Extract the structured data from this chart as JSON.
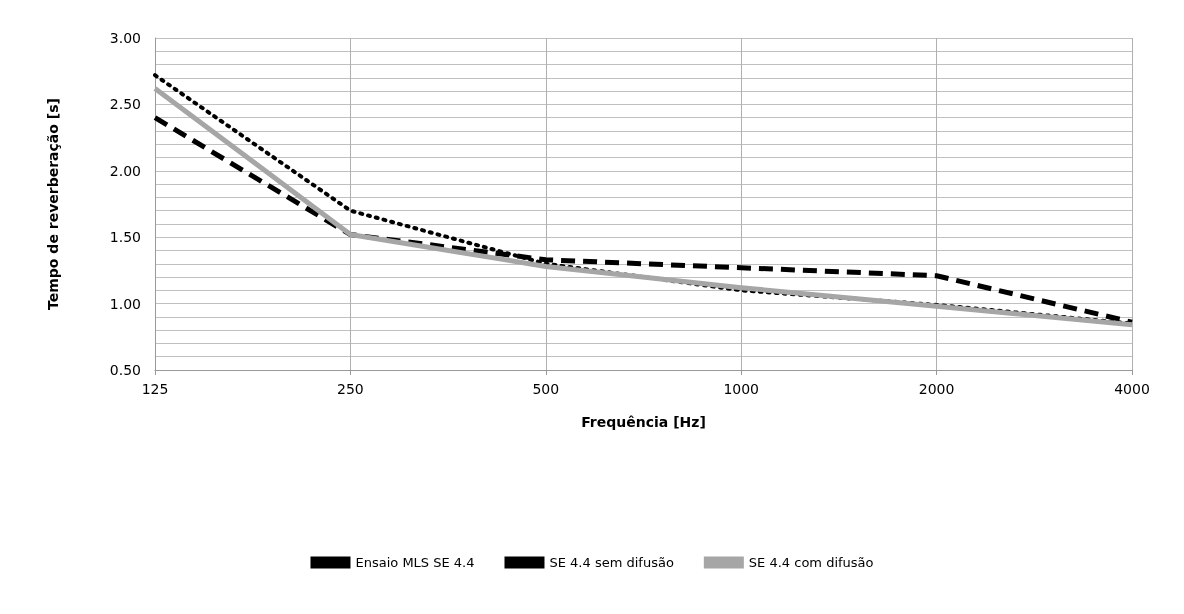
{
  "chart_data": {
    "type": "line",
    "xlabel": "Frequência [Hz]",
    "ylabel": "Tempo de reverberação [s]",
    "categories": [
      "125",
      "250",
      "500",
      "1000",
      "2000",
      "4000"
    ],
    "series": [
      {
        "name": "Ensaio MLS SE 4.4",
        "color": "#000000",
        "line_style": "dashed",
        "values": [
          2.4,
          1.52,
          1.33,
          1.27,
          1.21,
          0.86
        ]
      },
      {
        "name": "SE 4.4 sem difusão",
        "color": "#000000",
        "line_style": "dotted",
        "values": [
          2.72,
          1.7,
          1.3,
          1.1,
          0.99,
          0.85
        ]
      },
      {
        "name": "SE 4.4 com difusão",
        "color": "#a6a6a6",
        "line_style": "solid",
        "values": [
          2.62,
          1.52,
          1.28,
          1.12,
          0.98,
          0.84
        ]
      }
    ],
    "ylim": [
      0.5,
      3
    ],
    "yticks": [
      {
        "value": 0.5,
        "label": "0.50"
      },
      {
        "value": 0.6,
        "label": null
      },
      {
        "value": 0.7,
        "label": null
      },
      {
        "value": 0.8,
        "label": null
      },
      {
        "value": 0.9,
        "label": null
      },
      {
        "value": 1,
        "label": "1.00"
      },
      {
        "value": 1.1,
        "label": null
      },
      {
        "value": 1.2,
        "label": null
      },
      {
        "value": 1.3,
        "label": null
      },
      {
        "value": 1.4,
        "label": null
      },
      {
        "value": 1.5,
        "label": "1.50"
      },
      {
        "value": 1.6,
        "label": null
      },
      {
        "value": 1.7,
        "label": null
      },
      {
        "value": 1.8,
        "label": null
      },
      {
        "value": 1.9,
        "label": null
      },
      {
        "value": 2,
        "label": "2.00"
      },
      {
        "value": 2.1,
        "label": null
      },
      {
        "value": 2.2,
        "label": null
      },
      {
        "value": 2.3,
        "label": null
      },
      {
        "value": 2.4,
        "label": null
      },
      {
        "value": 2.5,
        "label": "2.50"
      },
      {
        "value": 2.6,
        "label": null
      },
      {
        "value": 2.7,
        "label": null
      },
      {
        "value": 2.8,
        "label": null
      },
      {
        "value": 2.9,
        "label": null
      },
      {
        "value": 3,
        "label": "3.00"
      }
    ],
    "grid": true,
    "legend": "bottom",
    "marker": "none"
  }
}
